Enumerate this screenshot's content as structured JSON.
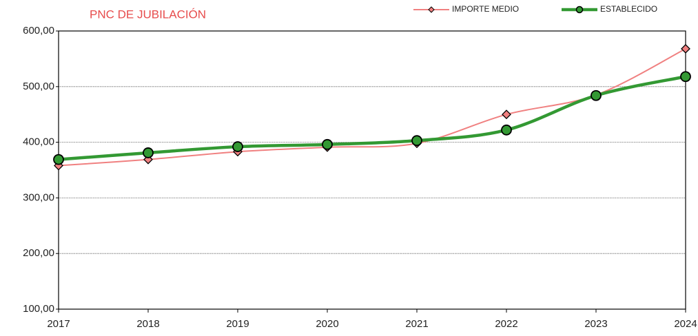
{
  "chart_data": {
    "type": "line",
    "title": "PNC DE JUBILACIÓN",
    "categories": [
      "2017",
      "2018",
      "2019",
      "2020",
      "2021",
      "2022",
      "2023",
      "2024"
    ],
    "series": [
      {
        "name": "IMPORTE MEDIO",
        "color": "#f08080",
        "marker": "diamond",
        "values": [
          358,
          369,
          383,
          391,
          398,
          450,
          485,
          568
        ]
      },
      {
        "name": "ESTABLECIDO",
        "color": "#339933",
        "marker": "circle",
        "values": [
          369,
          381,
          392,
          396,
          403,
          422,
          484,
          518
        ]
      }
    ],
    "ylim": [
      100,
      600
    ],
    "yticks": [
      {
        "value": 100,
        "label": "100,00"
      },
      {
        "value": 200,
        "label": "200,00"
      },
      {
        "value": 300,
        "label": "300,00"
      },
      {
        "value": 400,
        "label": "400,00"
      },
      {
        "value": 500,
        "label": "500,00"
      },
      {
        "value": 600,
        "label": "600,00"
      }
    ],
    "grid": true,
    "legend": "top-right"
  }
}
